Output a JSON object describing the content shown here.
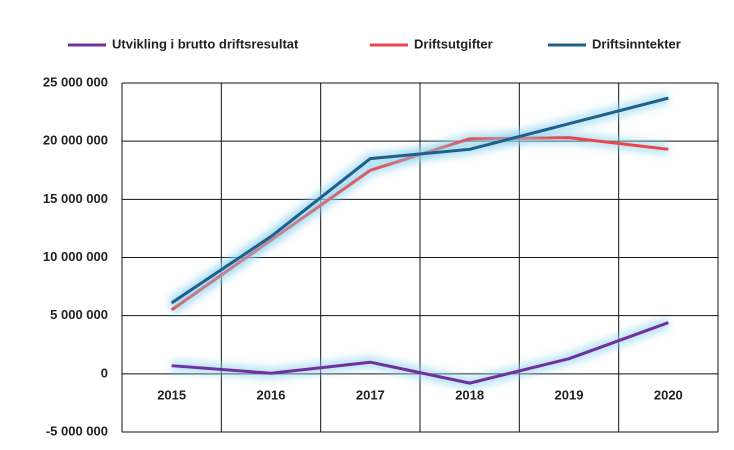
{
  "chart_data": {
    "type": "line",
    "categories": [
      "2015",
      "2016",
      "2017",
      "2018",
      "2019",
      "2020"
    ],
    "series": [
      {
        "name": "Utvikling i brutto driftsresultat",
        "color": "#7030a0",
        "values": [
          700000,
          50000,
          1000000,
          -800000,
          1300000,
          4400000
        ]
      },
      {
        "name": "Driftsutgifter",
        "color": "#e8474c",
        "values": [
          5500000,
          11500000,
          17500000,
          20200000,
          20300000,
          19300000
        ]
      },
      {
        "name": "Driftsinntekter",
        "color": "#1f5f8b",
        "values": [
          6100000,
          11800000,
          18500000,
          19300000,
          21500000,
          23700000
        ]
      }
    ],
    "ylim": [
      -5000000,
      25000000
    ],
    "yticks": [
      {
        "value": -5000000,
        "label": "-5 000 000"
      },
      {
        "value": 0,
        "label": "0"
      },
      {
        "value": 5000000,
        "label": "5 000 000"
      },
      {
        "value": 10000000,
        "label": "10 000 000"
      },
      {
        "value": 15000000,
        "label": "15 000 000"
      },
      {
        "value": 20000000,
        "label": "20 000 000"
      },
      {
        "value": 25000000,
        "label": "25 000 000"
      }
    ],
    "grid": true,
    "legend": "top"
  }
}
